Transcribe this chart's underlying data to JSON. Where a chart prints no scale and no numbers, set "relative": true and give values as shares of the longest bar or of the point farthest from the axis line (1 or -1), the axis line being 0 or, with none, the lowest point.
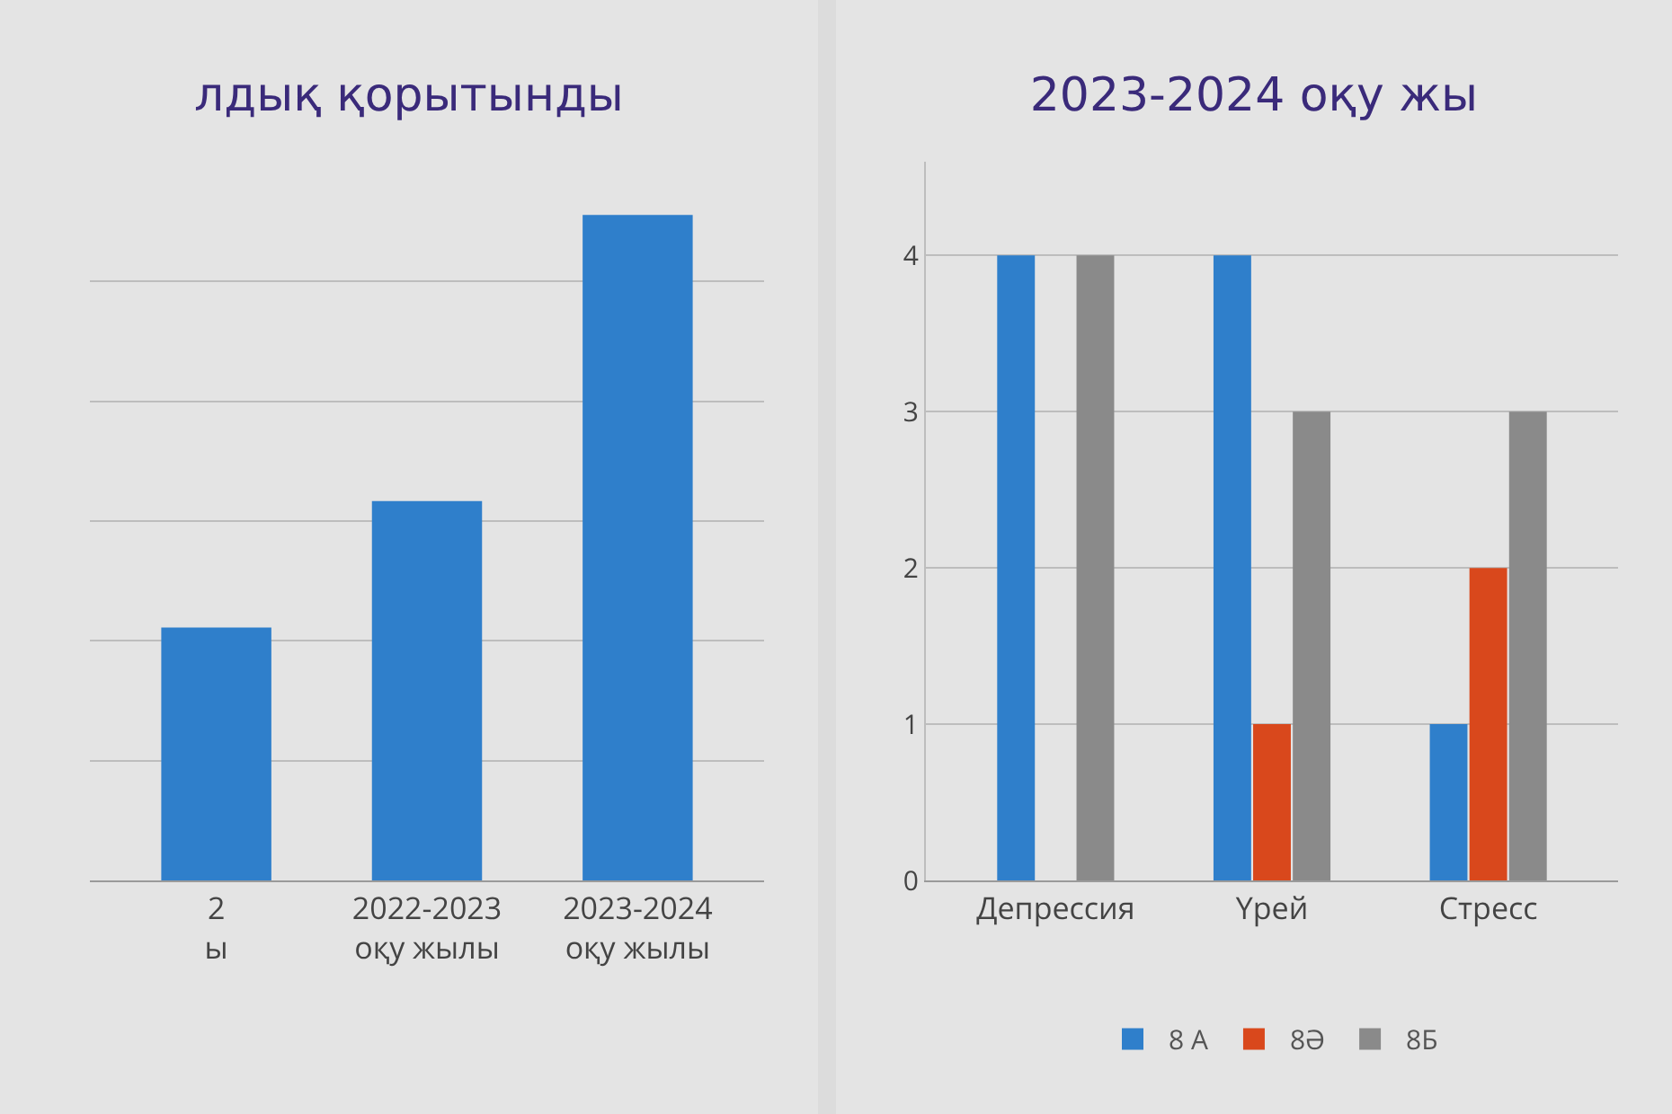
{
  "chart_data": [
    {
      "type": "bar",
      "title": "лдық қорытынды",
      "categories": [
        "2\nы",
        "2022-2023\nоқу жылы",
        "2023-2024\nоқу жылы"
      ],
      "values": [
        0.38,
        0.57,
        1
      ],
      "color": "#2f7fcb",
      "relative": true,
      "grid": true
    },
    {
      "type": "bar",
      "title": "2023-2024 оқу жы",
      "categories": [
        "Депрессия",
        "Үрей",
        "Стресс"
      ],
      "series": [
        {
          "name": "8 А",
          "color": "#2f7fcb",
          "values": [
            4,
            4,
            1
          ]
        },
        {
          "name": "8Ә",
          "color": "#d9481c",
          "values": [
            0,
            1,
            2
          ]
        },
        {
          "name": "8Б",
          "color": "#8a8a8a",
          "values": [
            4,
            3,
            3
          ]
        }
      ],
      "ylim": [
        0,
        4.6
      ],
      "yticks": [
        0,
        1,
        2,
        3,
        4
      ],
      "grid": true,
      "legend": "bottom"
    }
  ]
}
